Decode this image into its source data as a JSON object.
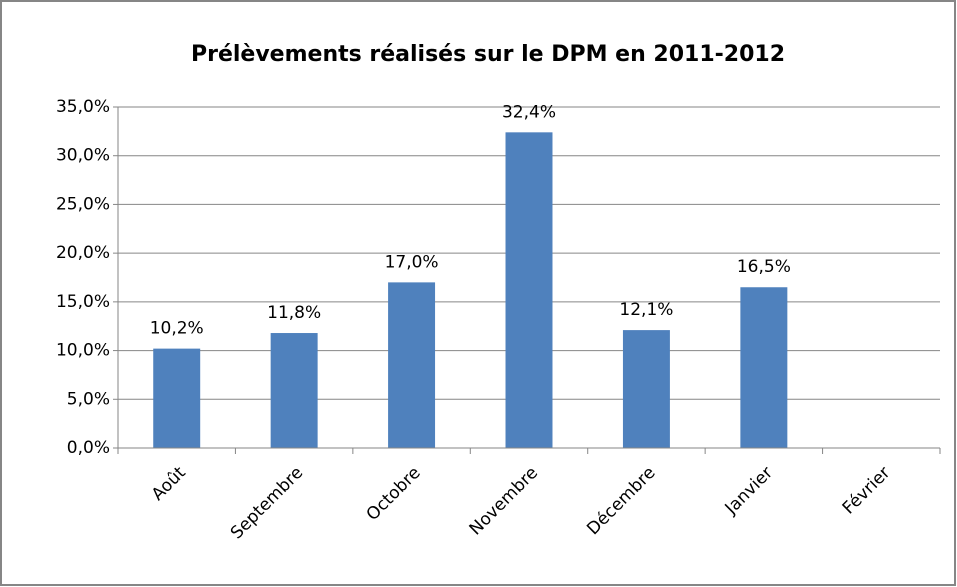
{
  "chart_data": {
    "type": "bar",
    "title": "Prélèvements réalisés sur le DPM en 2011-2012",
    "categories": [
      "Août",
      "Septembre",
      "Octobre",
      "Novembre",
      "Décembre",
      "Janvier",
      "Février"
    ],
    "values": [
      10.2,
      11.8,
      17.0,
      32.4,
      12.1,
      16.5,
      null
    ],
    "value_labels": [
      "10,2%",
      "11,8%",
      "17,0%",
      "32,4%",
      "12,1%",
      "16,5%",
      null
    ],
    "color": "#4f81bd",
    "ylim": [
      0,
      35
    ],
    "yticks": [
      {
        "value": 0,
        "label": "0,0%"
      },
      {
        "value": 5,
        "label": "5,0%"
      },
      {
        "value": 10,
        "label": "10,0%"
      },
      {
        "value": 15,
        "label": "15,0%"
      },
      {
        "value": 20,
        "label": "20,0%"
      },
      {
        "value": 25,
        "label": "25,0%"
      },
      {
        "value": 30,
        "label": "30,0%"
      },
      {
        "value": 35,
        "label": "35,0%"
      }
    ],
    "grid": true
  }
}
